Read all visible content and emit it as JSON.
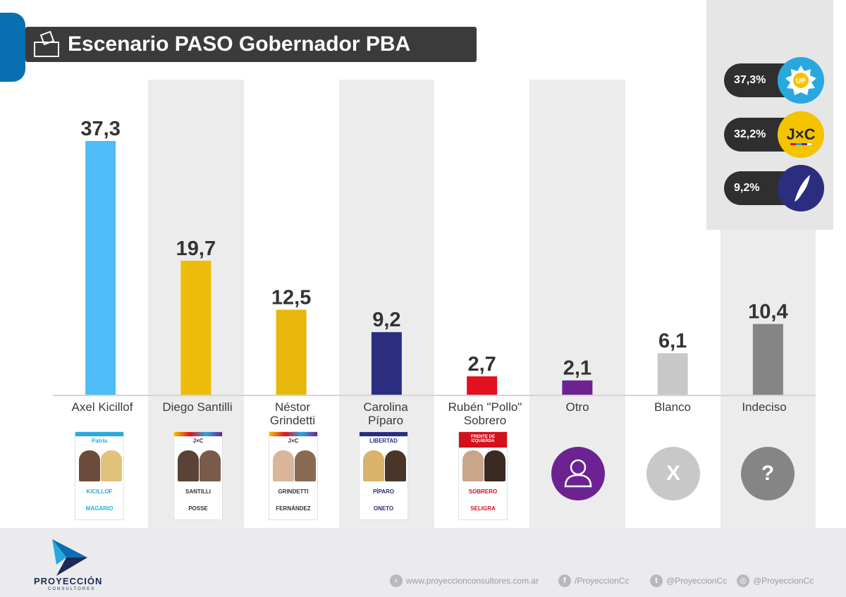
{
  "header": {
    "title": "Escenario PASO Gobernador PBA"
  },
  "colors": {
    "kicillof": "#4fbdf7",
    "santilli": "#eebd0a",
    "grindetti": "#e8b90c",
    "piparo": "#2b2d7f",
    "sobrero": "#e3101f",
    "otro": "#6c2391",
    "blanco": "#c8c8c8",
    "indeciso": "#858585"
  },
  "chart_data": {
    "type": "bar",
    "categories": [
      "Axel Kicillof",
      "Diego Santilli",
      "Néstor Grindetti",
      "Carolina Píparo",
      "Rubén \"Pollo\" Sobrero",
      "Otro",
      "Blanco",
      "Indeciso"
    ],
    "values": [
      37.3,
      19.7,
      12.5,
      9.2,
      2.7,
      2.1,
      6.1,
      10.4
    ],
    "value_labels": [
      "37,3",
      "19,7",
      "12,5",
      "9,2",
      "2,7",
      "2,1",
      "6,1",
      "10,4"
    ],
    "colors": [
      "#4fbdf7",
      "#eebd0a",
      "#e8b90c",
      "#2b2d7f",
      "#e3101f",
      "#6c2391",
      "#c8c8c8",
      "#858585"
    ],
    "ylim": [
      0,
      40
    ],
    "grid": false,
    "legend": "none"
  },
  "candidates": [
    {
      "line1": "Axel Kicillof",
      "line2": ""
    },
    {
      "line1": "Diego Santilli",
      "line2": ""
    },
    {
      "line1": "Néstor",
      "line2": "Grindetti"
    },
    {
      "line1": "Carolina",
      "line2": "Píparo"
    },
    {
      "line1": "Rubén \"Pollo\"",
      "line2": "Sobrero"
    },
    {
      "line1": "Otro",
      "line2": ""
    },
    {
      "line1": "Blanco",
      "line2": ""
    },
    {
      "line1": "Indeciso",
      "line2": ""
    }
  ],
  "ballots": [
    {
      "logo": "Patria",
      "name1": "KICILLOF",
      "name2": "MAGARIO",
      "color": "#2aa9e0"
    },
    {
      "logo": "J×C",
      "name1": "SANTILLI",
      "name2": "POSSE",
      "color": "#333333"
    },
    {
      "logo": "J×C",
      "name1": "GRINDETTI",
      "name2": "FERNÁNDEZ",
      "color": "#333333"
    },
    {
      "logo": "LIBERTAD",
      "name1": "PÍPARO",
      "name2": "ONETO",
      "color": "#2b2d7f"
    },
    {
      "logo": "FRENTE DE IZQUIERDA",
      "name1": "SOBRERO",
      "name2": "SELIGRA",
      "color": "#d4101c"
    }
  ],
  "icons": {
    "otro": "person-icon",
    "blanco": "X",
    "indeciso": "?"
  },
  "alliances": [
    {
      "pct": "37,3%",
      "logo": "UP",
      "color": "#29a8e0"
    },
    {
      "pct": "32,2%",
      "logo": "J×C",
      "color": "#f4c400"
    },
    {
      "pct": "9,2%",
      "logo": "feather",
      "color": "#2b2d7f"
    }
  ],
  "footer": {
    "brand": "PROYECCIÓN",
    "brand_sub": "CONSULTORES",
    "website": "www.proyeccionconsultores.com.ar",
    "facebook": "/ProyeccionCc",
    "twitter": "@ProyeccionCc",
    "instagram": "@ProyeccionCc"
  }
}
